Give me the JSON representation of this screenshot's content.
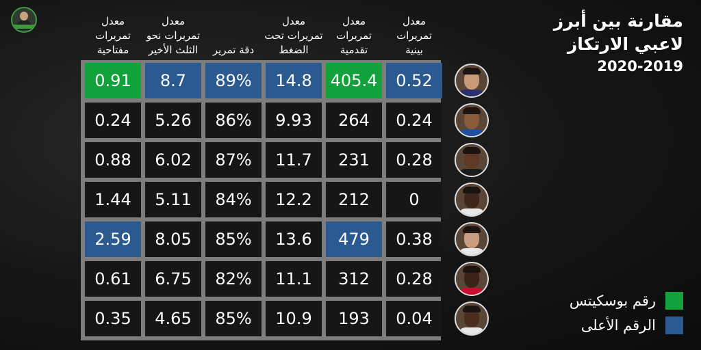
{
  "title": {
    "line1": "مقارنة بين أبرز",
    "line2": "لاعبي الارتكاز",
    "year": "2020-2019"
  },
  "legend": [
    {
      "label": "رقم بوسكيتس",
      "color": "#11a23b"
    },
    {
      "label": "الرقم الأعلى",
      "color": "#2b5a91"
    }
  ],
  "chart_data": {
    "type": "table",
    "columns": [
      {
        "lines": [
          "معدل",
          "تمريرات",
          "بينية"
        ]
      },
      {
        "lines": [
          "معدل",
          "تمريرات",
          "تقدمية"
        ]
      },
      {
        "lines": [
          "معدل",
          "تمريرات تحت",
          "الضغط"
        ]
      },
      {
        "lines": [
          "دقة تمرير"
        ]
      },
      {
        "lines": [
          "معدل",
          "تمريرات نحو",
          "الثلث الأخير"
        ]
      },
      {
        "lines": [
          "معدل",
          "تمريرات",
          "مفتاحية"
        ]
      }
    ],
    "rows": [
      {
        "values": [
          "0.52",
          "405.4",
          "14.8",
          "89%",
          "8.7",
          "0.91"
        ],
        "highlight": [
          "blue",
          "green",
          "blue",
          "blue",
          "blue",
          "green"
        ]
      },
      {
        "values": [
          "0.24",
          "264",
          "9.93",
          "86%",
          "5.26",
          "0.24"
        ],
        "highlight": [
          "",
          "",
          "",
          "",
          "",
          ""
        ]
      },
      {
        "values": [
          "0.28",
          "231",
          "11.7",
          "87%",
          "6.02",
          "0.88"
        ],
        "highlight": [
          "",
          "",
          "",
          "",
          "",
          ""
        ]
      },
      {
        "values": [
          "0",
          "212",
          "12.2",
          "84%",
          "5.11",
          "1.44"
        ],
        "highlight": [
          "",
          "",
          "",
          "",
          "",
          ""
        ]
      },
      {
        "values": [
          "0.38",
          "479",
          "13.6",
          "85%",
          "8.05",
          "2.59"
        ],
        "highlight": [
          "",
          "blue",
          "",
          "",
          "",
          "blue"
        ]
      },
      {
        "values": [
          "0.28",
          "312",
          "11.1",
          "82%",
          "6.75",
          "0.61"
        ],
        "highlight": [
          "",
          "",
          "",
          "",
          "",
          ""
        ]
      },
      {
        "values": [
          "0.04",
          "193",
          "10.9",
          "85%",
          "4.65",
          "0.35"
        ],
        "highlight": [
          "",
          "",
          "",
          "",
          "",
          ""
        ]
      }
    ]
  },
  "avatars": [
    {
      "icon": "player-avatar-icon",
      "skin": "#c99a78",
      "shirt": "#2b2f6b"
    },
    {
      "icon": "player-avatar-icon",
      "skin": "#8a5a3c",
      "shirt": "#1e4fa0"
    },
    {
      "icon": "player-avatar-icon",
      "skin": "#5e3a26",
      "shirt": "#1b1b1b"
    },
    {
      "icon": "player-avatar-icon",
      "skin": "#3e271a",
      "shirt": "#e8e8e8"
    },
    {
      "icon": "player-avatar-icon",
      "skin": "#c89d7f",
      "shirt": "#e8e8e8"
    },
    {
      "icon": "player-avatar-icon",
      "skin": "#3b2417",
      "shirt": "#c8102e"
    },
    {
      "icon": "player-avatar-icon",
      "skin": "#4a2d1c",
      "shirt": "#e8e8e8"
    }
  ],
  "colors": {
    "green": "#11a23b",
    "blue": "#2b5a91",
    "cell": "#161616",
    "grid": "#7d7d7d"
  }
}
